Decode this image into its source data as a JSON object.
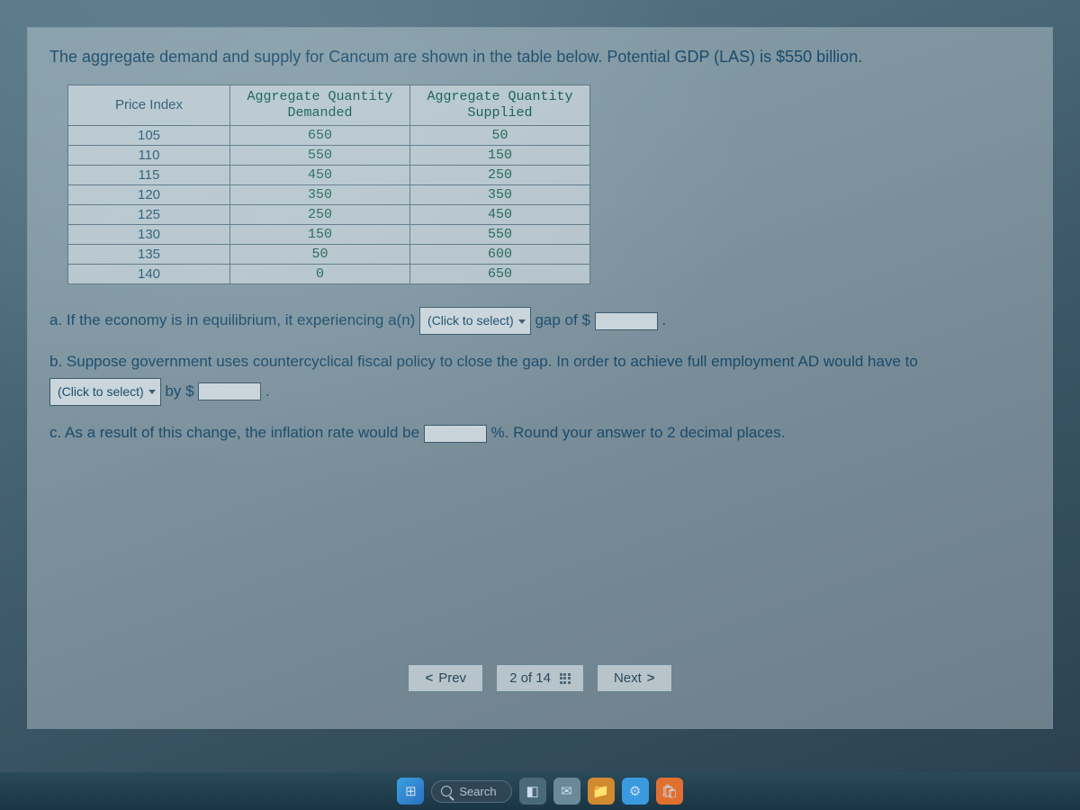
{
  "intro": "The aggregate demand and supply for Cancum are shown in the table below. Potential GDP (LAS) is $550 billion.",
  "table": {
    "headers": [
      "Price Index",
      "Aggregate Quantity\nDemanded",
      "Aggregate Quantity\nSupplied"
    ],
    "rows": [
      [
        "105",
        "650",
        "50"
      ],
      [
        "110",
        "550",
        "150"
      ],
      [
        "115",
        "450",
        "250"
      ],
      [
        "120",
        "350",
        "350"
      ],
      [
        "125",
        "250",
        "450"
      ],
      [
        "130",
        "150",
        "550"
      ],
      [
        "135",
        "50",
        "600"
      ],
      [
        "140",
        "0",
        "650"
      ]
    ]
  },
  "qA": {
    "pre": "a. If the economy is in equilibrium, it experiencing a(n) ",
    "select": "(Click to select)",
    "mid": " gap of $",
    "post": " ."
  },
  "qB": {
    "pre": "b. Suppose government uses countercyclical fiscal policy to close the gap. In order to achieve full employment AD would have to ",
    "select": "(Click to select)",
    "mid": " by $",
    "post": " ."
  },
  "qC": {
    "pre": "c. As a result of this change, the inflation rate would be ",
    "post": " %. Round your answer to 2 decimal places."
  },
  "nav": {
    "prev": "Prev",
    "pos": "2 of 14",
    "next": "Next"
  },
  "taskbar": {
    "search": "Search"
  }
}
